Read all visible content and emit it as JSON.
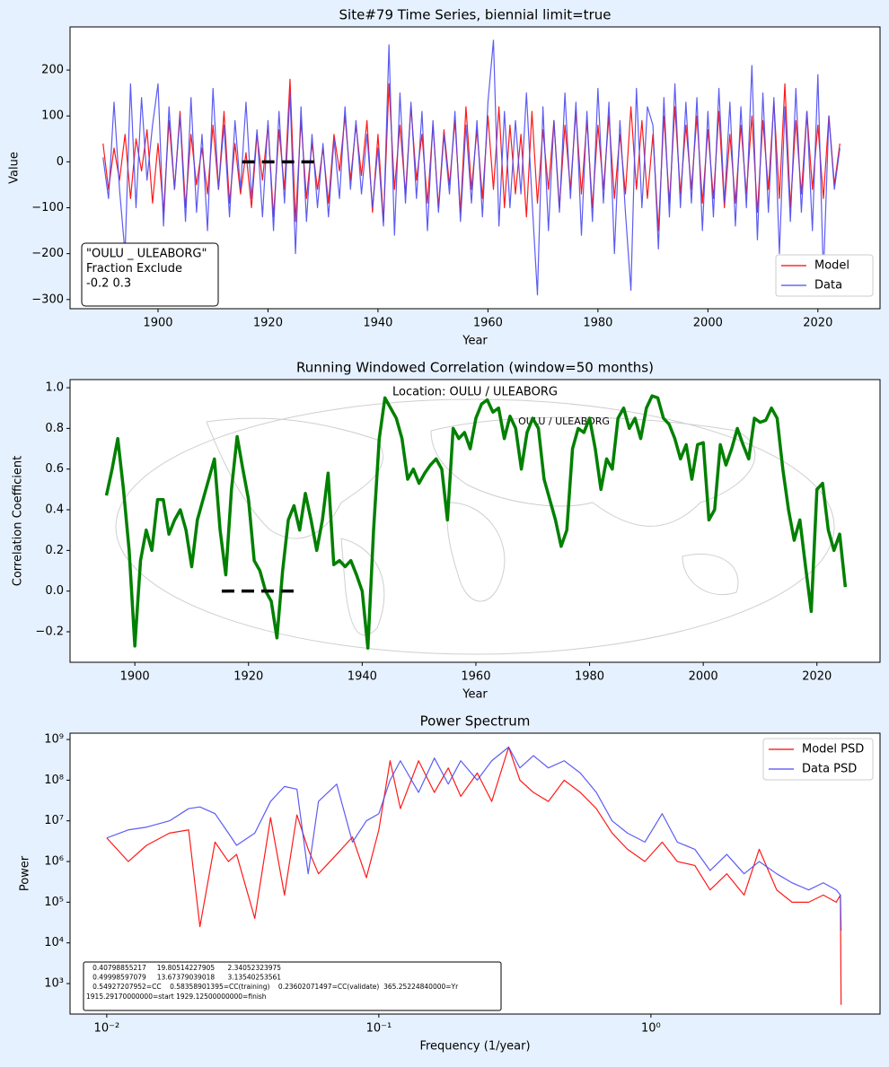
{
  "chart_data": [
    {
      "type": "line",
      "title": "Site#79 Time Series, biennial limit=true",
      "xlabel": "Year",
      "ylabel": "Value",
      "xlim": [
        1884,
        2031.3
      ],
      "ylim": [
        -320,
        294
      ],
      "xticks": [
        1900,
        1920,
        1940,
        1960,
        1980,
        2000,
        2020
      ],
      "yticks": [
        {
          "value": -300,
          "label": "−300"
        },
        {
          "value": -200,
          "label": "−200"
        },
        {
          "value": -100,
          "label": "−100"
        },
        0,
        100,
        200
      ],
      "x": [
        1890,
        1891,
        1892,
        1893,
        1894,
        1895,
        1896,
        1897,
        1898,
        1899,
        1900,
        1901,
        1902,
        1903,
        1904,
        1905,
        1906,
        1907,
        1908,
        1909,
        1910,
        1911,
        1912,
        1913,
        1914,
        1915,
        1916,
        1917,
        1918,
        1919,
        1920,
        1921,
        1922,
        1923,
        1924,
        1925,
        1926,
        1927,
        1928,
        1929,
        1930,
        1931,
        1932,
        1933,
        1934,
        1935,
        1936,
        1937,
        1938,
        1939,
        1940,
        1941,
        1942,
        1943,
        1944,
        1945,
        1946,
        1947,
        1948,
        1949,
        1950,
        1951,
        1952,
        1953,
        1954,
        1955,
        1956,
        1957,
        1958,
        1959,
        1960,
        1961,
        1962,
        1963,
        1964,
        1965,
        1966,
        1967,
        1968,
        1969,
        1970,
        1971,
        1972,
        1973,
        1974,
        1975,
        1976,
        1977,
        1978,
        1979,
        1980,
        1981,
        1982,
        1983,
        1984,
        1985,
        1986,
        1987,
        1988,
        1989,
        1990,
        1991,
        1992,
        1993,
        1994,
        1995,
        1996,
        1997,
        1998,
        1999,
        2000,
        2001,
        2002,
        2003,
        2004,
        2005,
        2006,
        2007,
        2008,
        2009,
        2010,
        2011,
        2012,
        2013,
        2014,
        2015,
        2016,
        2017,
        2018,
        2019,
        2020,
        2021,
        2022,
        2023,
        2024
      ],
      "series": [
        {
          "name": "Model",
          "color": "#ff0000",
          "values": [
            40,
            -60,
            30,
            -40,
            60,
            -80,
            50,
            -20,
            70,
            -90,
            40,
            -110,
            90,
            -60,
            110,
            -100,
            60,
            -50,
            30,
            -70,
            80,
            -60,
            110,
            -90,
            40,
            -70,
            20,
            -100,
            60,
            -40,
            80,
            -120,
            70,
            -60,
            180,
            -130,
            90,
            -80,
            40,
            -60,
            30,
            -90,
            60,
            -20,
            100,
            -40,
            80,
            -30,
            90,
            -110,
            60,
            -130,
            170,
            -60,
            80,
            -70,
            120,
            -40,
            60,
            -90,
            80,
            -100,
            70,
            -50,
            90,
            -110,
            120,
            -60,
            70,
            -80,
            100,
            -60,
            120,
            -100,
            80,
            -70,
            60,
            -120,
            110,
            -90,
            70,
            -60,
            90,
            -100,
            80,
            -60,
            110,
            -70,
            90,
            -100,
            80,
            -60,
            100,
            -80,
            60,
            -70,
            120,
            -60,
            90,
            -80,
            60,
            -150,
            100,
            -90,
            120,
            -70,
            80,
            -60,
            100,
            -90,
            70,
            -80,
            110,
            -100,
            60,
            -90,
            80,
            -70,
            100,
            -110,
            90,
            -60,
            130,
            -80,
            170,
            -100,
            90,
            -70,
            110,
            -60,
            80,
            -80,
            100,
            -50,
            40
          ]
        },
        {
          "name": "Data",
          "color": "#4a4af2",
          "values": [
            10,
            -80,
            130,
            -60,
            -200,
            170,
            -100,
            140,
            -40,
            80,
            170,
            -140,
            120,
            -60,
            100,
            -130,
            140,
            -110,
            60,
            -150,
            160,
            -60,
            80,
            -120,
            90,
            -60,
            130,
            -80,
            70,
            -120,
            90,
            -150,
            110,
            -90,
            150,
            -200,
            120,
            -130,
            60,
            -100,
            40,
            -120,
            50,
            -80,
            120,
            -60,
            90,
            -70,
            60,
            -100,
            30,
            -140,
            255,
            -160,
            150,
            -90,
            130,
            -80,
            110,
            -150,
            90,
            -110,
            60,
            -70,
            110,
            -130,
            80,
            -90,
            90,
            -120,
            130,
            265,
            -140,
            110,
            -100,
            90,
            -70,
            150,
            -80,
            -290,
            120,
            -150,
            90,
            -110,
            150,
            -80,
            130,
            -160,
            110,
            -130,
            160,
            -90,
            130,
            -200,
            90,
            -110,
            -280,
            160,
            -100,
            120,
            80,
            -190,
            140,
            -120,
            170,
            -100,
            130,
            -90,
            140,
            -150,
            110,
            -120,
            160,
            -90,
            130,
            -140,
            120,
            -100,
            210,
            -170,
            150,
            -110,
            140,
            -200,
            120,
            -130,
            160,
            -110,
            110,
            -150,
            190,
            -250,
            100,
            -60,
            30
          ]
        }
      ],
      "reference_line": {
        "x": [
          1915.2917,
          1929.125
        ],
        "y": 0,
        "color": "#000000"
      },
      "legend": "lower right",
      "annotation": [
        "\"OULU _ ULEABORG\"",
        "Fraction Exclude",
        "-0.2 0.3"
      ]
    },
    {
      "type": "line",
      "title": "Running Windowed Correlation (window=50 months)",
      "xlabel": "Year",
      "ylabel": "Correlation Coefficient",
      "xlim": [
        1888.6,
        2031.1
      ],
      "ylim": [
        -0.35,
        1.04
      ],
      "xticks": [
        1900,
        1920,
        1940,
        1960,
        1980,
        2000,
        2020
      ],
      "yticks": [
        {
          "value": -0.2,
          "label": "−0.2"
        },
        {
          "value": 0,
          "label": "0.0"
        },
        0.2,
        0.4,
        0.6,
        0.8,
        {
          "value": 1,
          "label": "1.0"
        }
      ],
      "background_text": "Location: OULU / ULEABORG",
      "background_marker_label": "OULU / ULEABORG",
      "linewidth": 3.5,
      "x": [
        1895,
        1896,
        1897,
        1898,
        1899,
        1900,
        1901,
        1902,
        1903,
        1904,
        1905,
        1906,
        1907,
        1908,
        1909,
        1910,
        1911,
        1912,
        1913,
        1914,
        1915,
        1916,
        1917,
        1918,
        1919,
        1920,
        1921,
        1922,
        1923,
        1924,
        1925,
        1926,
        1927,
        1928,
        1929,
        1930,
        1931,
        1932,
        1933,
        1934,
        1935,
        1936,
        1937,
        1938,
        1939,
        1940,
        1941,
        1942,
        1943,
        1944,
        1945,
        1946,
        1947,
        1948,
        1949,
        1950,
        1951,
        1952,
        1953,
        1954,
        1955,
        1956,
        1957,
        1958,
        1959,
        1960,
        1961,
        1962,
        1963,
        1964,
        1965,
        1966,
        1967,
        1968,
        1969,
        1970,
        1971,
        1972,
        1973,
        1974,
        1975,
        1976,
        1977,
        1978,
        1979,
        1980,
        1981,
        1982,
        1983,
        1984,
        1985,
        1986,
        1987,
        1988,
        1989,
        1990,
        1991,
        1992,
        1993,
        1994,
        1995,
        1996,
        1997,
        1998,
        1999,
        2000,
        2001,
        2002,
        2003,
        2004,
        2005,
        2006,
        2007,
        2008,
        2009,
        2010,
        2011,
        2012,
        2013,
        2014,
        2015,
        2016,
        2017,
        2018,
        2019,
        2020,
        2021,
        2022,
        2023,
        2024,
        2025
      ],
      "series": [
        {
          "color": "#008000",
          "values": [
            0.47,
            0.6,
            0.75,
            0.5,
            0.2,
            -0.27,
            0.15,
            0.3,
            0.2,
            0.45,
            0.45,
            0.28,
            0.35,
            0.4,
            0.3,
            0.12,
            0.35,
            0.45,
            0.55,
            0.65,
            0.3,
            0.08,
            0.5,
            0.76,
            0.6,
            0.45,
            0.15,
            0.1,
            0.0,
            -0.05,
            -0.23,
            0.1,
            0.35,
            0.42,
            0.3,
            0.48,
            0.35,
            0.2,
            0.35,
            0.58,
            0.13,
            0.15,
            0.12,
            0.15,
            0.08,
            0.0,
            -0.28,
            0.3,
            0.75,
            0.95,
            0.9,
            0.85,
            0.75,
            0.55,
            0.6,
            0.53,
            0.58,
            0.62,
            0.65,
            0.6,
            0.35,
            0.8,
            0.75,
            0.78,
            0.7,
            0.85,
            0.92,
            0.94,
            0.88,
            0.9,
            0.75,
            0.86,
            0.8,
            0.6,
            0.78,
            0.85,
            0.8,
            0.55,
            0.45,
            0.35,
            0.22,
            0.3,
            0.7,
            0.8,
            0.78,
            0.85,
            0.7,
            0.5,
            0.65,
            0.6,
            0.85,
            0.9,
            0.8,
            0.85,
            0.75,
            0.9,
            0.96,
            0.95,
            0.85,
            0.82,
            0.75,
            0.65,
            0.72,
            0.55,
            0.72,
            0.73,
            0.35,
            0.4,
            0.72,
            0.62,
            0.7,
            0.8,
            0.72,
            0.65,
            0.85,
            0.83,
            0.84,
            0.9,
            0.85,
            0.6,
            0.4,
            0.25,
            0.35,
            0.12,
            -0.1,
            0.5,
            0.53,
            0.3,
            0.2,
            0.28,
            0.02
          ]
        }
      ],
      "reference_line": {
        "x": [
          1915.2917,
          1929.125
        ],
        "y": 0,
        "color": "#000000"
      }
    },
    {
      "type": "line",
      "title": "Power Spectrum",
      "xlabel": "Frequency (1/year)",
      "ylabel": "Power",
      "xlog": true,
      "ylog": true,
      "xlim": [
        0.00733,
        6.95
      ],
      "ylim": [
        178,
        1430000000.0
      ],
      "xticks": [
        {
          "value": 0.01,
          "label": "10⁻²"
        },
        {
          "value": 0.1,
          "label": "10⁻¹"
        },
        {
          "value": 1,
          "label": "10⁰"
        }
      ],
      "yticks": [
        {
          "value": 1000.0,
          "label": "10³"
        },
        {
          "value": 10000.0,
          "label": "10⁴"
        },
        {
          "value": 100000.0,
          "label": "10⁵"
        },
        {
          "value": 1000000.0,
          "label": "10⁶"
        },
        {
          "value": 10000000.0,
          "label": "10⁷"
        },
        {
          "value": 100000000.0,
          "label": "10⁸"
        },
        {
          "value": 1000000000.0,
          "label": "10⁹"
        }
      ],
      "x": [
        0.01,
        0.012,
        0.014,
        0.017,
        0.02,
        0.022,
        0.025,
        0.028,
        0.03,
        0.035,
        0.04,
        0.045,
        0.05,
        0.055,
        0.06,
        0.07,
        0.08,
        0.09,
        0.1,
        0.11,
        0.12,
        0.14,
        0.16,
        0.18,
        0.2,
        0.23,
        0.26,
        0.3,
        0.33,
        0.37,
        0.42,
        0.48,
        0.55,
        0.63,
        0.72,
        0.82,
        0.95,
        1.1,
        1.25,
        1.45,
        1.65,
        1.9,
        2.2,
        2.5,
        2.9,
        3.3,
        3.8,
        4.3,
        4.8,
        4.97,
        5.0
      ],
      "series": [
        {
          "name": "Model PSD",
          "color": "#ff0000",
          "values": [
            3800000.0,
            1000000.0,
            2500000.0,
            5000000.0,
            6000000.0,
            25000.0,
            3000000.0,
            1000000.0,
            1500000.0,
            40000.0,
            12000000.0,
            150000.0,
            14000000.0,
            2000000.0,
            500000.0,
            1500000.0,
            4000000.0,
            400000.0,
            6000000.0,
            300000000.0,
            20000000.0,
            300000000.0,
            50000000.0,
            200000000.0,
            40000000.0,
            150000000.0,
            30000000.0,
            650000000.0,
            100000000.0,
            50000000.0,
            30000000.0,
            100000000.0,
            50000000.0,
            20000000.0,
            5000000.0,
            2000000.0,
            1000000.0,
            3000000.0,
            1000000.0,
            800000.0,
            200000.0,
            500000.0,
            150000.0,
            2000000.0,
            200000.0,
            100000.0,
            100000.0,
            150000.0,
            100000.0,
            150000.0,
            300.0
          ]
        },
        {
          "name": "Data PSD",
          "color": "#4a4af2",
          "values": [
            3800000.0,
            6000000.0,
            7000000.0,
            10000000.0,
            20000000.0,
            22000000.0,
            15000000.0,
            5000000.0,
            2500000.0,
            5000000.0,
            30000000.0,
            70000000.0,
            60000000.0,
            500000.0,
            30000000.0,
            80000000.0,
            3000000.0,
            10000000.0,
            15000000.0,
            100000000.0,
            300000000.0,
            50000000.0,
            350000000.0,
            80000000.0,
            300000000.0,
            100000000.0,
            300000000.0,
            650000000.0,
            200000000.0,
            400000000.0,
            200000000.0,
            300000000.0,
            150000000.0,
            50000000.0,
            10000000.0,
            5000000.0,
            3000000.0,
            15000000.0,
            3000000.0,
            2000000.0,
            600000.0,
            1500000.0,
            500000.0,
            1000000.0,
            500000.0,
            300000.0,
            200000.0,
            300000.0,
            200000.0,
            150000.0,
            20000.0
          ]
        }
      ],
      "legend": "upper right",
      "annotation": [
        "   0.40798855217     19.80514227905      2.34052323975",
        "   0.49998597079     13.67379039018      3.13540253561",
        "   0.54927207952=CC    0.58358901395=CC(training)    0.23602071497=CC(validate)  365.25224840000=Yr",
        "1915.29170000000=start 1929.12500000000=finish"
      ]
    }
  ]
}
